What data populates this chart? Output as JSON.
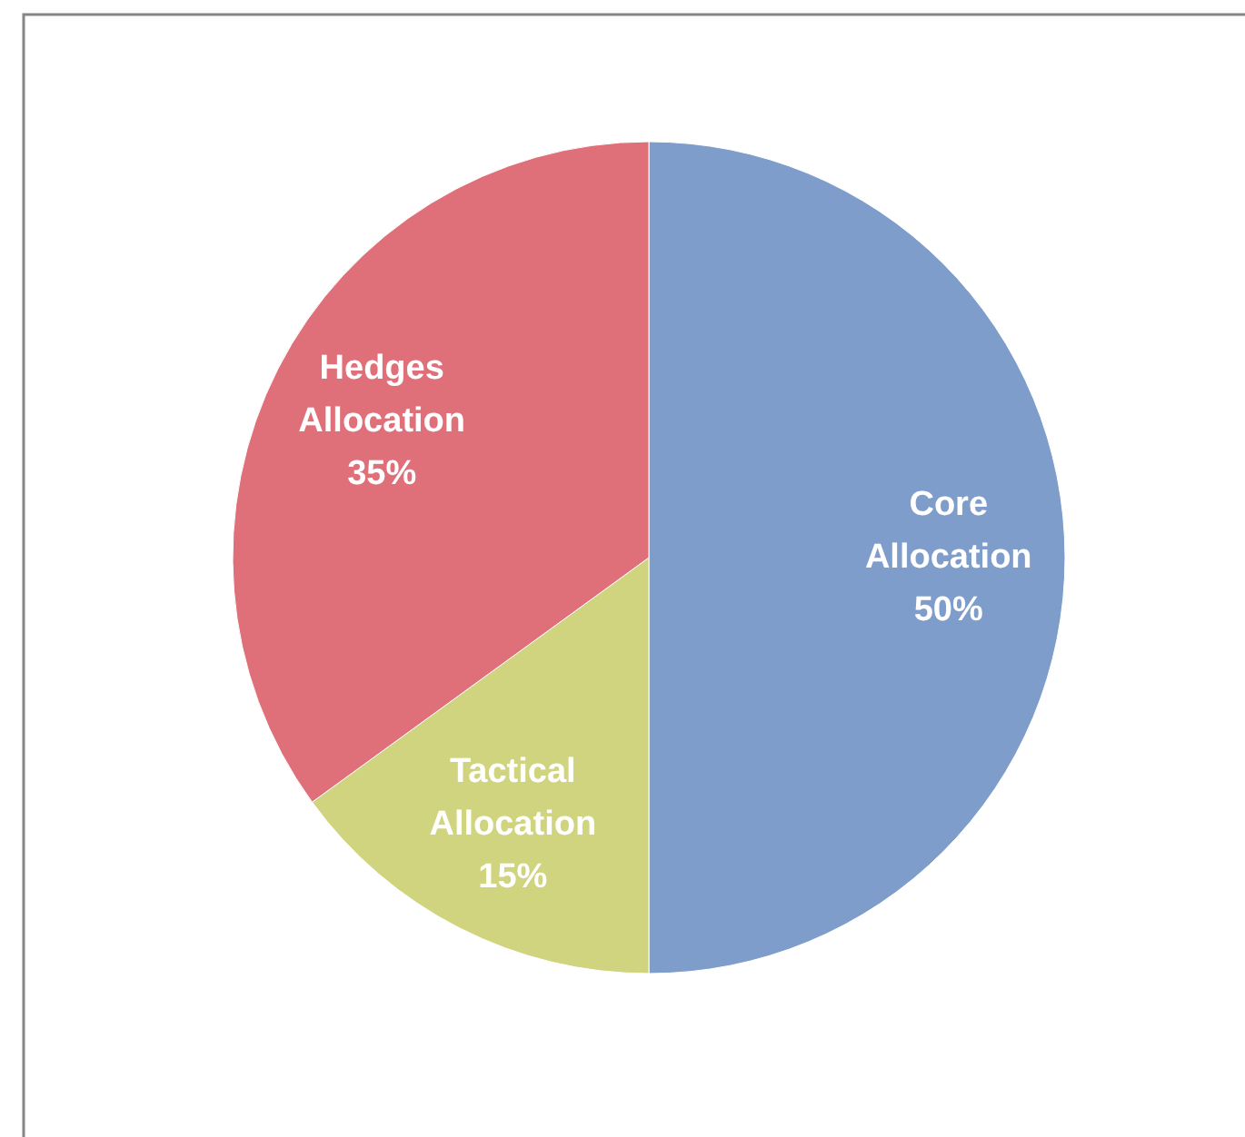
{
  "chart_data": {
    "type": "pie",
    "categories": [
      "Core Allocation",
      "Tactical Allocation",
      "Hedges Allocation"
    ],
    "values": [
      50,
      15,
      35
    ],
    "colors": [
      "#7f9dcb",
      "#d0d47f",
      "#df707a"
    ],
    "value_labels": [
      "50%",
      "15%",
      "35%"
    ]
  }
}
